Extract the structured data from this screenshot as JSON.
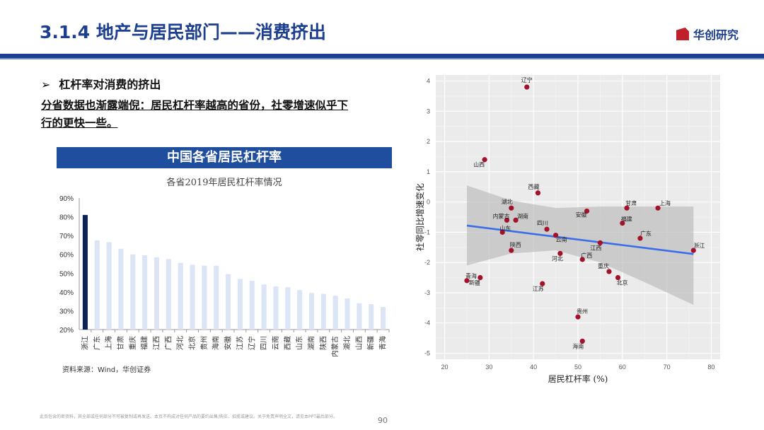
{
  "header": {
    "title": "3.1.4 地产与居民部门——消费挤出",
    "brand": "华创研究"
  },
  "bullet": "杠杆率对消费的挤出",
  "lead_text": "分省数据也渐露端倪：居民杠杆率越高的省份，社零增速似乎下行的更快一些。",
  "footer": {
    "disclaimer": "此页包含的密资料，其全部或任何部分不可被复制或再发送。本页不构成对任何产品的要约出售/购买、招揽或建议。关于免责声明全文，请见本PPT最后部分。",
    "page": "90"
  },
  "colors": {
    "brand_blue": "#1d3f8f",
    "banner_blue": "#1f4e9e",
    "bar_highlight": "#0d2254",
    "bar_light": "#dbe5f5",
    "point": "#a3122a",
    "trend": "#3a6ee8"
  },
  "chart_data": [
    {
      "type": "bar",
      "banner_title": "中国各省居民杠杆率",
      "subtitle": "各省2019年居民杠杆率情况",
      "source": "资料来源：Wind，华创证券",
      "ylim": [
        0.2,
        0.9
      ],
      "yticks": [
        "20%",
        "30%",
        "40%",
        "50%",
        "60%",
        "70%",
        "80%",
        "90%"
      ],
      "highlight": "浙江",
      "categories": [
        "浙江",
        "广东",
        "上海",
        "甘肃",
        "重庆",
        "福建",
        "江西",
        "广西",
        "河北",
        "北京",
        "贵州",
        "海南",
        "安徽",
        "江苏",
        "辽宁",
        "四川",
        "云南",
        "西藏",
        "山东",
        "湖南",
        "陕西",
        "内蒙古",
        "湖北",
        "山西",
        "新疆",
        "青海"
      ],
      "values": [
        0.81,
        0.675,
        0.665,
        0.63,
        0.6,
        0.595,
        0.585,
        0.575,
        0.555,
        0.545,
        0.54,
        0.54,
        0.495,
        0.47,
        0.46,
        0.44,
        0.43,
        0.425,
        0.41,
        0.395,
        0.39,
        0.38,
        0.365,
        0.34,
        0.335,
        0.32
      ]
    },
    {
      "type": "scatter",
      "xlabel": "居民杠杆率 (%)",
      "ylabel": "社零同比增速变化",
      "xlim": [
        18,
        82
      ],
      "ylim": [
        -5.2,
        4.2
      ],
      "xticks": [
        20,
        30,
        40,
        50,
        60,
        70,
        80
      ],
      "yticks": [
        4,
        3,
        2,
        1,
        0,
        -1,
        -2,
        -3,
        -4,
        -5
      ],
      "points": [
        {
          "name": "辽宁",
          "x": 38.5,
          "y": 3.8
        },
        {
          "name": "山西",
          "x": 29,
          "y": 1.4
        },
        {
          "name": "西藏",
          "x": 41,
          "y": 0.3
        },
        {
          "name": "湖北",
          "x": 35,
          "y": -0.2
        },
        {
          "name": "内蒙古",
          "x": 34,
          "y": -0.6
        },
        {
          "name": "湖南",
          "x": 36,
          "y": -0.6
        },
        {
          "name": "山东",
          "x": 33,
          "y": -1.0
        },
        {
          "name": "四川",
          "x": 43,
          "y": -0.9
        },
        {
          "name": "云南",
          "x": 45,
          "y": -1.1
        },
        {
          "name": "陕西",
          "x": 35,
          "y": -1.6
        },
        {
          "name": "河北",
          "x": 46,
          "y": -1.7
        },
        {
          "name": "广西",
          "x": 51,
          "y": -1.9
        },
        {
          "name": "江西",
          "x": 55,
          "y": -1.35
        },
        {
          "name": "安徽",
          "x": 52,
          "y": -0.3
        },
        {
          "name": "甘肃",
          "x": 61,
          "y": -0.2
        },
        {
          "name": "福建",
          "x": 60,
          "y": -0.7
        },
        {
          "name": "上海",
          "x": 68,
          "y": -0.2
        },
        {
          "name": "广东",
          "x": 64,
          "y": -1.2
        },
        {
          "name": "浙江",
          "x": 76,
          "y": -1.6
        },
        {
          "name": "重庆",
          "x": 57,
          "y": -2.3
        },
        {
          "name": "北京",
          "x": 59,
          "y": -2.5
        },
        {
          "name": "青海",
          "x": 25,
          "y": -2.6
        },
        {
          "name": "新疆",
          "x": 28,
          "y": -2.5
        },
        {
          "name": "江苏",
          "x": 42,
          "y": -2.7
        },
        {
          "name": "贵州",
          "x": 50,
          "y": -3.8
        },
        {
          "name": "海南",
          "x": 51,
          "y": -4.6
        }
      ],
      "trend": {
        "x": [
          25,
          76
        ],
        "y": [
          -0.78,
          -1.72
        ]
      },
      "confidence_band": {
        "x": [
          25,
          35,
          45,
          55,
          65,
          76
        ],
        "upper": [
          0.55,
          0.05,
          -0.2,
          -0.15,
          -0.15,
          -0.15
        ],
        "lower": [
          -2.1,
          -1.7,
          -1.6,
          -2.0,
          -2.65,
          -3.4
        ]
      }
    }
  ]
}
